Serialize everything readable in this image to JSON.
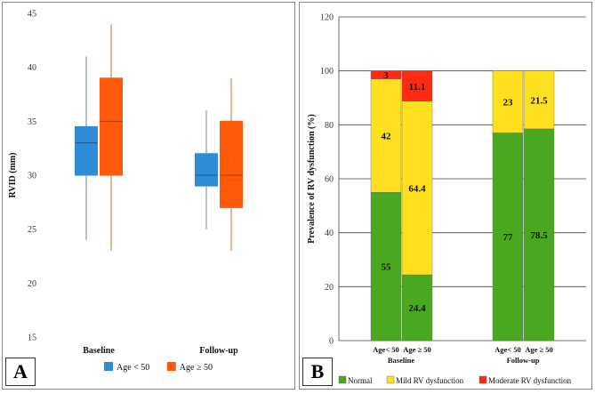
{
  "chart_data": [
    {
      "panel": "A",
      "type": "box",
      "ylabel": "RVID (mm)",
      "ylim": [
        15,
        45
      ],
      "yticks": [
        15,
        20,
        25,
        30,
        35,
        40,
        45
      ],
      "categories": [
        "Baseline",
        "Follow-up"
      ],
      "legend": {
        "placement": "bottom-center"
      },
      "series": [
        {
          "name": "Age < 50",
          "color": "#2e8bd8",
          "whisker_color": "#8fa4ac",
          "boxes": [
            {
              "min": 24,
              "q1": 30,
              "median": 33,
              "q3": 34.5,
              "max": 41
            },
            {
              "min": 25,
              "q1": 29,
              "median": 30,
              "q3": 32,
              "max": 36
            }
          ]
        },
        {
          "name": "Age ≥ 50",
          "color": "#ff5a0a",
          "whisker_color": "#e0895a",
          "boxes": [
            {
              "min": 23,
              "q1": 30,
              "median": 35,
              "q3": 39,
              "max": 44
            },
            {
              "min": 23,
              "q1": 27,
              "median": 30,
              "q3": 35,
              "max": 39
            }
          ]
        }
      ]
    },
    {
      "panel": "B",
      "type": "stacked-bar",
      "ylabel": "Prevalence of RV dysfunction (%)",
      "ylim": [
        0,
        120
      ],
      "yticks": [
        0,
        20,
        40,
        60,
        80,
        100,
        120
      ],
      "grid": true,
      "groups": [
        "Baseline",
        "Follow-up"
      ],
      "categories": [
        "Age< 50",
        "Age ≥ 50",
        "Age< 50",
        "Age ≥ 50"
      ],
      "legend": {
        "placement": "bottom"
      },
      "series": [
        {
          "name": "Normal",
          "color": "#4aa820",
          "values": [
            55,
            24.4,
            77,
            78.5
          ]
        },
        {
          "name": "Mild RV dysfunction",
          "color": "#ffe020",
          "values": [
            42,
            64.4,
            23,
            21.5
          ]
        },
        {
          "name": "Moderate RV dysfunction",
          "color": "#ff2a10",
          "values": [
            3,
            11.1,
            0,
            0
          ]
        }
      ],
      "labels": [
        [
          "55",
          "42",
          "3"
        ],
        [
          "24.4",
          "64.4",
          "11.1"
        ],
        [
          "77",
          "23",
          ""
        ],
        [
          "78.5",
          "21.5",
          ""
        ]
      ]
    }
  ]
}
